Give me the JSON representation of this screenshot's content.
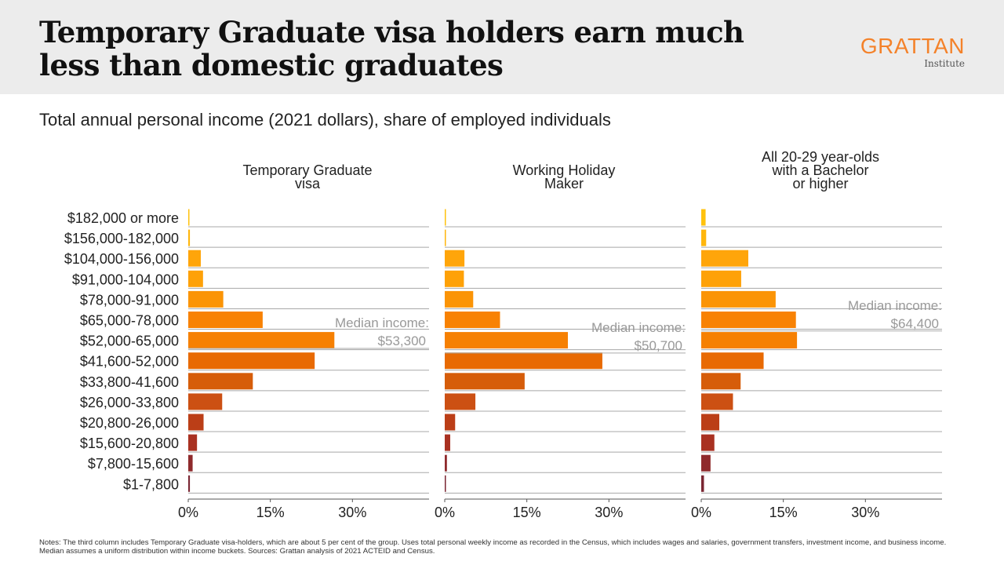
{
  "title": "Temporary Graduate visa holders earn much less than domestic graduates",
  "logo": {
    "name": "GRATTAN",
    "sub": "Institute",
    "color": "#f4822a"
  },
  "subtitle": "Total annual personal income (2021 dollars), share of employed individuals",
  "notes": "Notes: The third column includes Temporary Graduate visa-holders, which are about 5 per cent of the group. Uses total personal weekly income as recorded in the Census, which includes wages and salaries, government transfers, investment income, and business income. Median assumes a uniform distribution within income buckets. Sources: Grattan analysis of 2021 ACTEID and Census.",
  "chart_data": [
    {
      "type": "bar",
      "orientation": "horizontal",
      "title": "Temporary Graduate visa",
      "title_lines": [
        "Temporary Graduate",
        "visa"
      ],
      "categories": [
        "$182,000 or more",
        "$156,000-182,000",
        "$104,000-156,000",
        "$91,000-104,000",
        "$78,000-91,000",
        "$65,000-78,000",
        "$52,000-65,000",
        "$41,600-52,000",
        "$33,800-41,600",
        "$26,000-33,800",
        "$20,800-26,000",
        "$15,600-20,800",
        "$7,800-15,600",
        "$1-7,800"
      ],
      "values": [
        0.2,
        0.3,
        2.3,
        2.7,
        6.4,
        13.6,
        26.7,
        23.1,
        11.8,
        6.2,
        2.8,
        1.6,
        0.8,
        0.3
      ],
      "xlim": [
        0,
        44
      ],
      "xticks": [
        "0%",
        "15%",
        "30%"
      ],
      "xtick_values": [
        0,
        15,
        30
      ],
      "median": {
        "label": "Median income:",
        "value": "$53,300",
        "position": 59.83
      }
    },
    {
      "type": "bar",
      "orientation": "horizontal",
      "title": "Working Holiday Maker",
      "title_lines": [
        "Working Holiday",
        "Maker"
      ],
      "categories": [
        "$182,000 or more",
        "$156,000-182,000",
        "$104,000-156,000",
        "$91,000-104,000",
        "$78,000-91,000",
        "$65,000-78,000",
        "$52,000-65,000",
        "$41,600-52,000",
        "$33,800-41,600",
        "$26,000-33,800",
        "$20,800-26,000",
        "$15,600-20,800",
        "$7,800-15,600",
        "$1-7,800"
      ],
      "values": [
        0.1,
        0.2,
        3.6,
        3.5,
        5.2,
        10.1,
        22.5,
        28.8,
        14.6,
        5.6,
        1.9,
        1.0,
        0.4,
        0.1
      ],
      "xlim": [
        0,
        44
      ],
      "xticks": [
        "0%",
        "15%",
        "30%"
      ],
      "xtick_values": [
        0,
        15,
        30
      ],
      "median": {
        "label": "Median income:",
        "value": "$50,700",
        "position": 54.26
      }
    },
    {
      "type": "bar",
      "orientation": "horizontal",
      "title": "All 20-29 year-olds with a Bachelor or higher",
      "title_lines": [
        "All 20-29 year-olds",
        "with a Bachelor",
        "or higher"
      ],
      "categories": [
        "$182,000 or more",
        "$156,000-182,000",
        "$104,000-156,000",
        "$91,000-104,000",
        "$78,000-91,000",
        "$65,000-78,000",
        "$52,000-65,000",
        "$41,600-52,000",
        "$33,800-41,600",
        "$26,000-33,800",
        "$20,800-26,000",
        "$15,600-20,800",
        "$7,800-15,600",
        "$1-7,800"
      ],
      "values": [
        0.8,
        0.9,
        8.6,
        7.3,
        13.6,
        17.3,
        17.5,
        11.4,
        7.2,
        5.8,
        3.3,
        2.4,
        1.7,
        0.5
      ],
      "xlim": [
        0,
        44
      ],
      "xticks": [
        "0%",
        "15%",
        "30%"
      ],
      "xtick_values": [
        0,
        15,
        30
      ],
      "median": {
        "label": "Median income:",
        "value": "$64,400",
        "position": 65.0
      }
    }
  ],
  "colors": {
    "bars": [
      "#ffc20e",
      "#ffb60c",
      "#ffa50a",
      "#fea108",
      "#fb9406",
      "#f88204",
      "#f68002",
      "#e86a03",
      "#d65d0a",
      "#cc5013",
      "#bb3e17",
      "#a93121",
      "#8f2a2c",
      "#7a2632"
    ],
    "grid": "#a8a8a8",
    "median_line": "#aaaaaa",
    "median_text": "#999999"
  }
}
